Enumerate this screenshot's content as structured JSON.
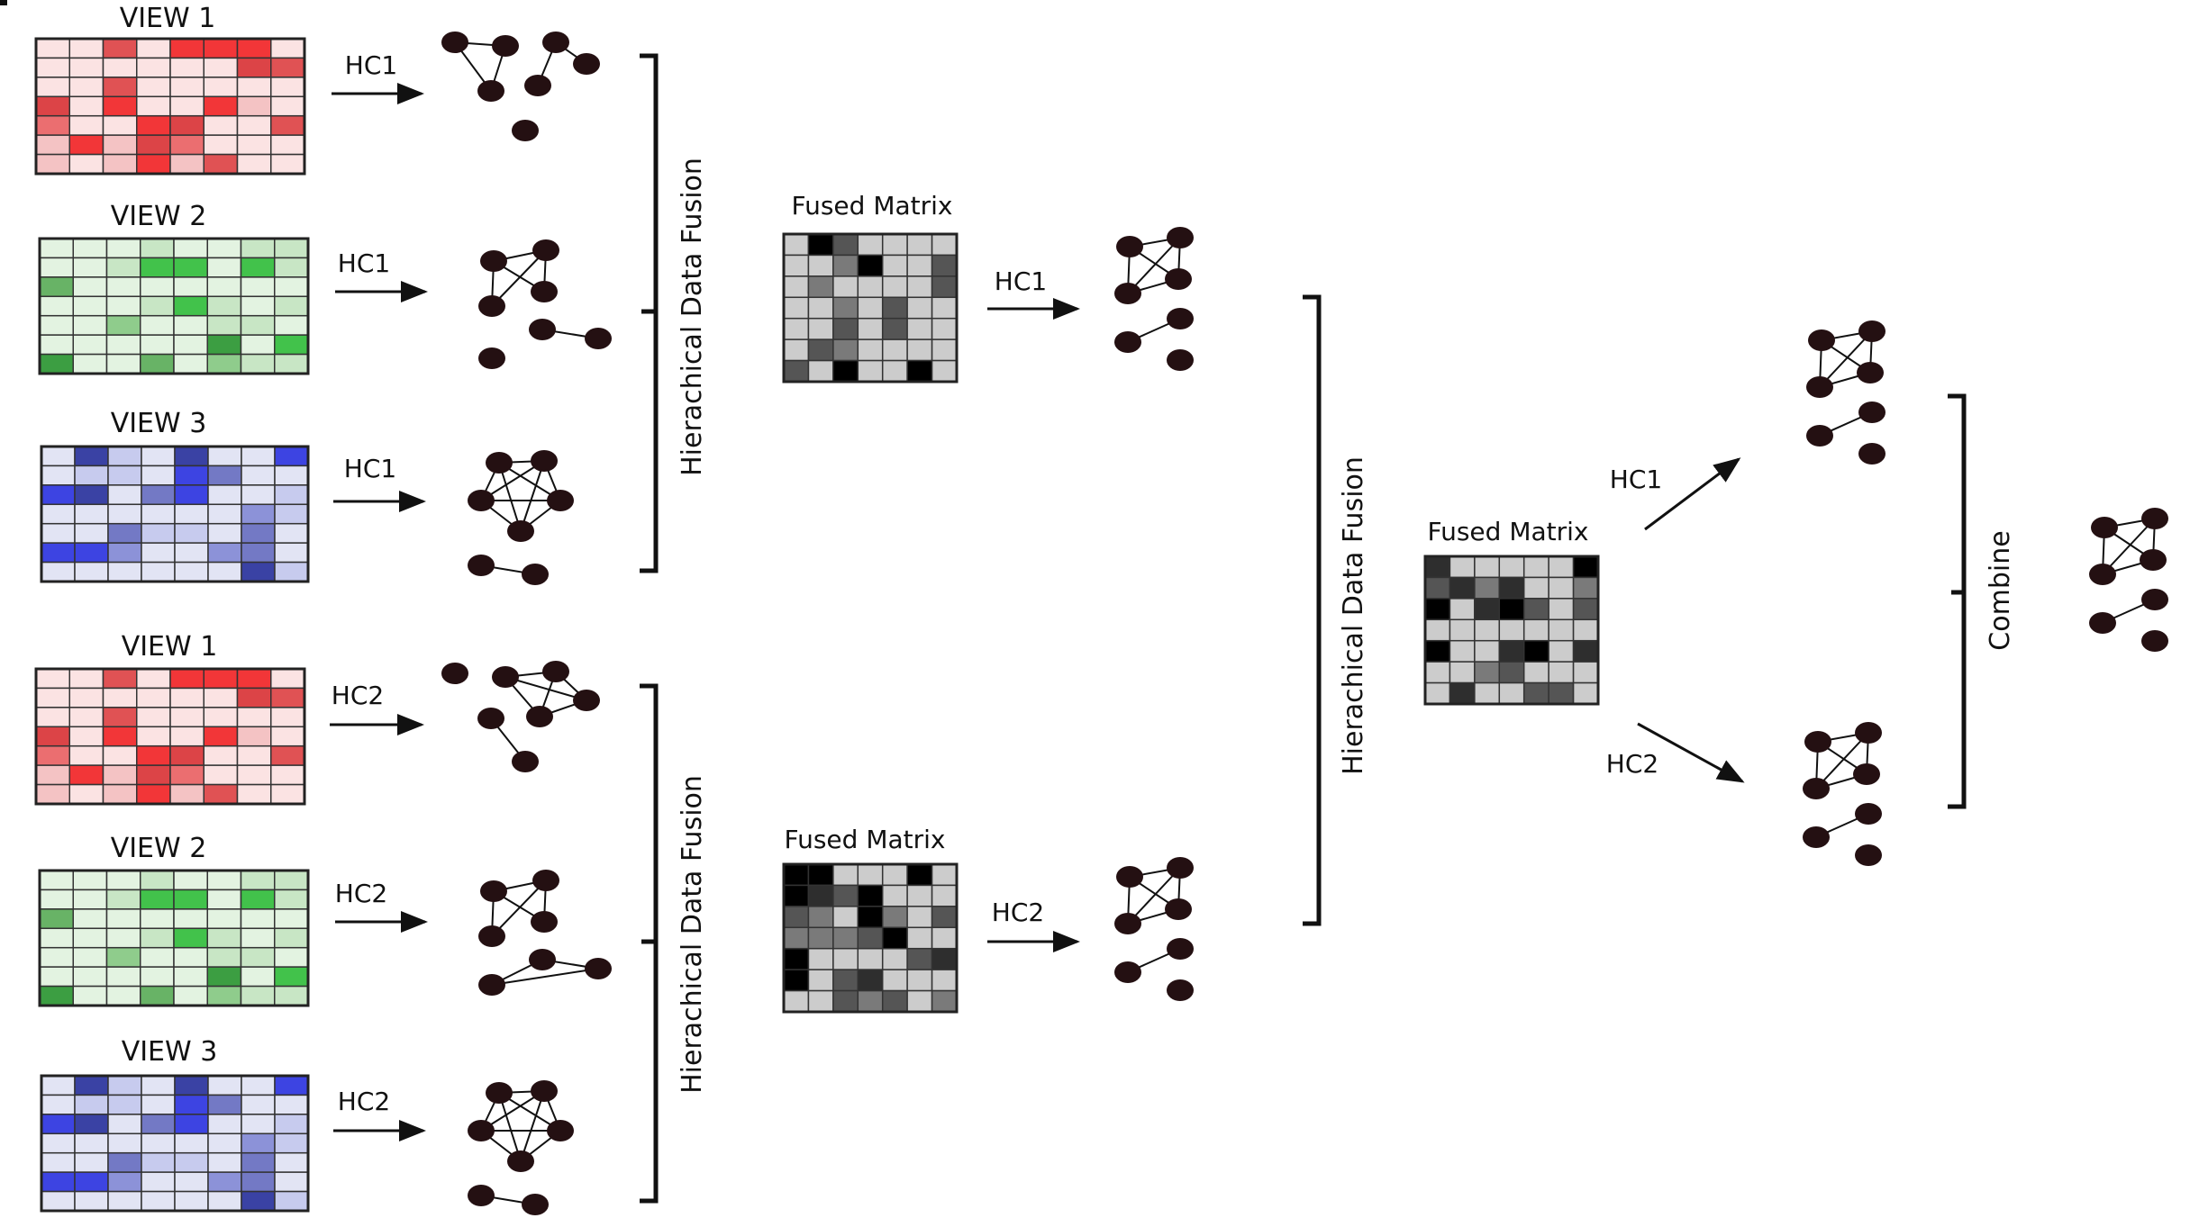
{
  "labels": {
    "view1": "VIEW 1",
    "view2": "VIEW 2",
    "view3": "VIEW 3",
    "hc1": "HC1",
    "hc2": "HC2",
    "fused_matrix": "Fused Matrix",
    "fusion": "Hierachical Data Fusion",
    "combine": "Combine"
  },
  "colors": {
    "red_palette": [
      "#fbe3e3",
      "#f4c3c4",
      "#eb6e70",
      "#dc4447",
      "#f23638",
      "#e05254"
    ],
    "green_palette": [
      "#e3f3e1",
      "#c8e6c5",
      "#68b366",
      "#3c9e42",
      "#42c24b",
      "#8fcc8c"
    ],
    "blue_palette": [
      "#e2e4f4",
      "#c7cbee",
      "#7379c5",
      "#3a42a4",
      "#3d44e2",
      "#8c92d8"
    ],
    "gray_palette": [
      "#cccccc",
      "#555555",
      "#2e2e2e",
      "#000000",
      "#7a7a7a"
    ],
    "node": "#241012",
    "line": "#111111"
  },
  "icons": [
    "arrow-icon",
    "bracket-icon",
    "cluster-graph-icon"
  ]
}
